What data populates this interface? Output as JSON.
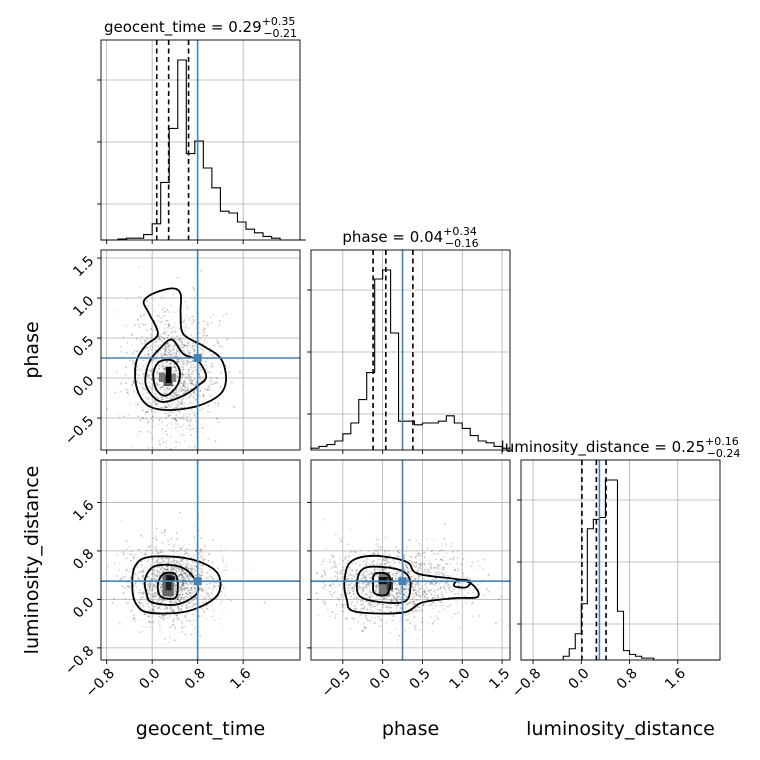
{
  "chart_data": {
    "type": "corner",
    "parameters": [
      "geocent_time",
      "phase",
      "luminosity_distance"
    ],
    "truth_color": "#4682b4",
    "truths": {
      "geocent_time": 0.8,
      "phase": 0.25,
      "luminosity_distance": 0.3
    },
    "titles": [
      {
        "param": "geocent_time",
        "label": "geocent_time = 0.29",
        "sup": "+0.35",
        "sub": "−0.21"
      },
      {
        "param": "phase",
        "label": "phase = 0.04",
        "sup": "+0.34",
        "sub": "−0.16"
      },
      {
        "param": "luminosity_distance",
        "label": "luminosity_distance = 0.25",
        "sup": "+0.16",
        "sub": "−0.24"
      }
    ],
    "ranges": {
      "geocent_time": [
        -0.9,
        2.6
      ],
      "phase": [
        -0.9,
        1.6
      ],
      "luminosity_distance": [
        -1.0,
        2.3
      ]
    },
    "tick_values": {
      "geocent_time": [
        -0.8,
        0.0,
        0.8,
        1.6
      ],
      "phase": [
        -0.5,
        0.0,
        0.5,
        1.0,
        1.5
      ],
      "luminosity_distance": [
        -0.8,
        0.0,
        0.8,
        1.6
      ]
    },
    "tick_labels": {
      "geocent_time": [
        "−0.8",
        "0.0",
        "0.8",
        "1.6"
      ],
      "phase": [
        "−0.5",
        "0.0",
        "0.5",
        "1.0",
        "1.5"
      ],
      "luminosity_distance": [
        "−0.8",
        "0.0",
        "0.8",
        "1.6"
      ]
    },
    "quantiles": {
      "geocent_time": [
        0.08,
        0.29,
        0.64
      ],
      "phase": [
        -0.12,
        0.04,
        0.38
      ],
      "luminosity_distance": [
        0.01,
        0.25,
        0.41
      ]
    },
    "histograms": {
      "geocent_time": {
        "x0": -0.9,
        "bin": 0.15,
        "counts": [
          0,
          0,
          0.5,
          1,
          1,
          3,
          9,
          32,
          62,
          100,
          48,
          55,
          40,
          29,
          16,
          15,
          10,
          6,
          4,
          2,
          1,
          0,
          0,
          0
        ]
      },
      "phase": {
        "x0": -0.9,
        "bin": 0.1,
        "counts": [
          1,
          2,
          3,
          5,
          9,
          15,
          28,
          43,
          95,
          100,
          65,
          16,
          16,
          14,
          15,
          15,
          16,
          19,
          15,
          12,
          8,
          5,
          4,
          2,
          1
        ]
      },
      "luminosity_distance": {
        "x0": -1.0,
        "bin": 0.1,
        "counts": [
          0,
          0,
          0,
          0,
          0,
          0,
          0,
          2,
          6,
          14,
          30,
          70,
          75,
          76,
          96,
          96,
          26,
          5,
          3,
          2,
          1,
          1,
          0,
          0,
          0,
          0,
          0,
          0,
          0,
          0,
          0,
          0,
          0
        ]
      }
    },
    "pairs": [
      {
        "x": "geocent_time",
        "y": "phase",
        "mode": {
          "x": 0.28,
          "y": 0.02
        },
        "contours": [
          [
            [
              0.25,
              -0.22
            ],
            [
              0.45,
              -0.08
            ],
            [
              0.48,
              0.1
            ],
            [
              0.35,
              0.22
            ],
            [
              0.12,
              0.2
            ],
            [
              0.02,
              0.05
            ],
            [
              0.08,
              -0.15
            ]
          ],
          [
            [
              0.2,
              -0.3
            ],
            [
              0.55,
              -0.22
            ],
            [
              0.8,
              -0.1
            ],
            [
              0.95,
              0.02
            ],
            [
              0.8,
              0.22
            ],
            [
              0.55,
              0.3
            ],
            [
              0.35,
              0.48
            ],
            [
              0.15,
              0.38
            ],
            [
              -0.05,
              0.2
            ],
            [
              -0.12,
              -0.05
            ],
            [
              0.0,
              -0.22
            ]
          ],
          [
            [
              0.25,
              -0.4
            ],
            [
              0.8,
              -0.35
            ],
            [
              1.2,
              -0.2
            ],
            [
              1.3,
              0.0
            ],
            [
              1.2,
              0.25
            ],
            [
              0.9,
              0.4
            ],
            [
              0.55,
              0.55
            ],
            [
              0.5,
              0.8
            ],
            [
              0.5,
              1.05
            ],
            [
              0.35,
              1.12
            ],
            [
              0.0,
              1.05
            ],
            [
              -0.15,
              0.95
            ],
            [
              -0.05,
              0.8
            ],
            [
              0.1,
              0.55
            ],
            [
              -0.12,
              0.4
            ],
            [
              -0.28,
              0.2
            ],
            [
              -0.28,
              -0.1
            ],
            [
              -0.1,
              -0.33
            ]
          ]
        ],
        "core": [
          {
            "x": 0.2,
            "y": -0.1,
            "w": 0.16,
            "h": 0.14,
            "shade": "#555555"
          },
          {
            "x": 0.24,
            "y": -0.06,
            "w": 0.1,
            "h": 0.2,
            "shade": "#000000"
          },
          {
            "x": 0.12,
            "y": -0.05,
            "w": 0.1,
            "h": 0.12,
            "shade": "#777777"
          },
          {
            "x": 0.34,
            "y": -0.05,
            "w": 0.08,
            "h": 0.1,
            "shade": "#888888"
          }
        ],
        "spread": {
          "cx": 0.35,
          "cy": 0.05,
          "sx": 0.38,
          "sy": 0.38,
          "n": 1400
        }
      },
      {
        "x": "geocent_time",
        "y": "luminosity_distance",
        "mode": {
          "x": 0.28,
          "y": 0.25
        },
        "contours": [
          [
            [
              0.15,
              0.05
            ],
            [
              0.4,
              0.02
            ],
            [
              0.45,
              0.22
            ],
            [
              0.4,
              0.42
            ],
            [
              0.2,
              0.42
            ],
            [
              0.1,
              0.25
            ]
          ],
          [
            [
              0.0,
              -0.05
            ],
            [
              0.45,
              -0.08
            ],
            [
              0.8,
              0.12
            ],
            [
              0.7,
              0.4
            ],
            [
              0.45,
              0.55
            ],
            [
              0.05,
              0.55
            ],
            [
              -0.12,
              0.35
            ],
            [
              -0.1,
              0.1
            ]
          ],
          [
            [
              -0.05,
              -0.22
            ],
            [
              0.6,
              -0.2
            ],
            [
              1.1,
              0.02
            ],
            [
              1.2,
              0.3
            ],
            [
              1.05,
              0.52
            ],
            [
              0.6,
              0.68
            ],
            [
              -0.05,
              0.7
            ],
            [
              -0.3,
              0.55
            ],
            [
              -0.35,
              0.2
            ],
            [
              -0.28,
              -0.08
            ]
          ]
        ],
        "core": [
          {
            "x": 0.18,
            "y": 0.05,
            "w": 0.2,
            "h": 0.4,
            "shade": "#666666"
          },
          {
            "x": 0.24,
            "y": 0.15,
            "w": 0.1,
            "h": 0.25,
            "shade": "#222222"
          },
          {
            "x": 0.28,
            "y": 0.3,
            "w": 0.12,
            "h": 0.08,
            "shade": "#111111"
          }
        ],
        "spread": {
          "cx": 0.35,
          "cy": 0.25,
          "sx": 0.38,
          "sy": 0.33,
          "n": 1400
        }
      },
      {
        "x": "phase",
        "y": "luminosity_distance",
        "mode": {
          "x": 0.0,
          "y": 0.25
        },
        "contours": [
          [
            [
              -0.1,
              0.1
            ],
            [
              0.05,
              0.08
            ],
            [
              0.1,
              0.3
            ],
            [
              0.05,
              0.42
            ],
            [
              -0.1,
              0.42
            ],
            [
              -0.12,
              0.25
            ]
          ],
          [
            [
              -0.25,
              0.02
            ],
            [
              0.25,
              -0.05
            ],
            [
              0.35,
              0.2
            ],
            [
              0.3,
              0.42
            ],
            [
              0.1,
              0.52
            ],
            [
              -0.22,
              0.52
            ],
            [
              -0.32,
              0.3
            ]
          ],
          [
            [
              -0.35,
              -0.2
            ],
            [
              0.25,
              -0.22
            ],
            [
              0.5,
              -0.05
            ],
            [
              0.9,
              0.02
            ],
            [
              1.2,
              0.05
            ],
            [
              1.05,
              0.3
            ],
            [
              0.45,
              0.42
            ],
            [
              0.3,
              0.62
            ],
            [
              -0.1,
              0.72
            ],
            [
              -0.4,
              0.62
            ],
            [
              -0.48,
              0.3
            ],
            [
              -0.45,
              0.0
            ]
          ],
          [
            [
              0.9,
              0.22
            ],
            [
              1.05,
              0.2
            ],
            [
              1.1,
              0.3
            ],
            [
              0.95,
              0.32
            ]
          ]
        ],
        "core": [
          {
            "x": -0.05,
            "y": 0.05,
            "w": 0.14,
            "h": 0.4,
            "shade": "#777777"
          },
          {
            "x": -0.05,
            "y": 0.25,
            "w": 0.14,
            "h": 0.12,
            "shade": "#111111"
          },
          {
            "x": 0.05,
            "y": 0.15,
            "w": 0.08,
            "h": 0.2,
            "shade": "#444444"
          }
        ],
        "spread": {
          "cx": 0.15,
          "cy": 0.25,
          "sx": 0.45,
          "sy": 0.3,
          "n": 1400
        }
      }
    ],
    "grid": true
  }
}
